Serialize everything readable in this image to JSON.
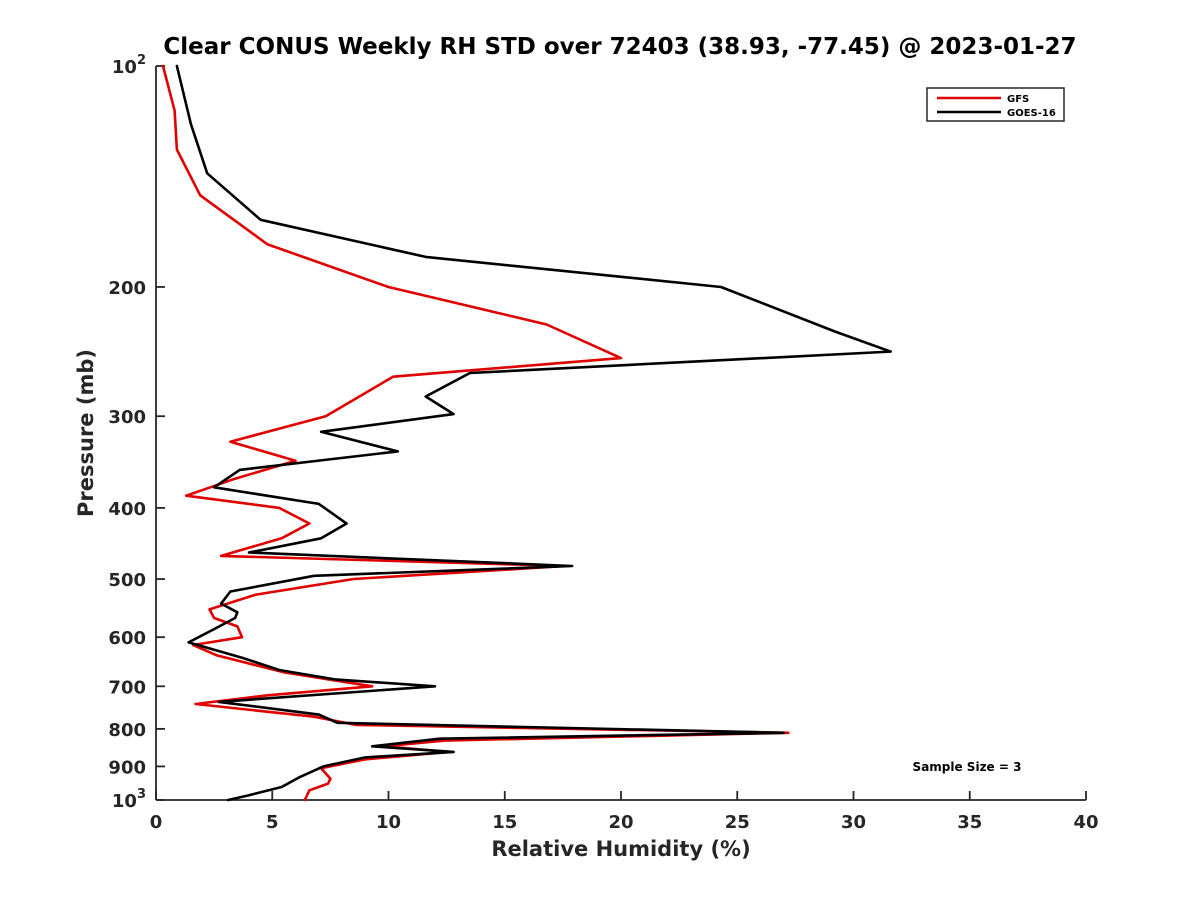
{
  "chart_data": {
    "type": "line",
    "title": "Clear CONUS Weekly RH STD over 72403 (38.93, -77.45) @ 2023-01-27",
    "xlabel": "Relative Humidity (%)",
    "ylabel": "Pressure (mb)",
    "xlim": [
      0,
      40
    ],
    "ylim": [
      100,
      1000
    ],
    "y_scale": "log",
    "y_reversed": true,
    "grid": false,
    "legend_position": "top-right",
    "x_ticks": [
      "0",
      "5",
      "10",
      "15",
      "20",
      "25",
      "30",
      "35",
      "40"
    ],
    "y_ticks": [
      {
        "value": 100,
        "base": "10",
        "exp": "2"
      },
      {
        "value": 200,
        "label": "200"
      },
      {
        "value": 300,
        "label": "300"
      },
      {
        "value": 400,
        "label": "400"
      },
      {
        "value": 500,
        "label": "500"
      },
      {
        "value": 600,
        "label": "600"
      },
      {
        "value": 700,
        "label": "700"
      },
      {
        "value": 800,
        "label": "800"
      },
      {
        "value": 900,
        "label": "900"
      },
      {
        "value": 1000,
        "base": "10",
        "exp": "3"
      }
    ],
    "annotation": "Sample Size = 3",
    "series": [
      {
        "name": "GFS",
        "color": "#e00000",
        "points": [
          [
            0.3,
            100
          ],
          [
            0.8,
            115
          ],
          [
            0.9,
            130
          ],
          [
            1.9,
            150
          ],
          [
            4.8,
            175
          ],
          [
            10.0,
            200
          ],
          [
            16.8,
            225
          ],
          [
            20.0,
            250
          ],
          [
            10.2,
            265
          ],
          [
            7.3,
            300
          ],
          [
            3.2,
            325
          ],
          [
            6.0,
            345
          ],
          [
            3.4,
            365
          ],
          [
            1.3,
            385
          ],
          [
            5.3,
            400
          ],
          [
            6.6,
            420
          ],
          [
            5.4,
            440
          ],
          [
            2.8,
            465
          ],
          [
            17.6,
            480
          ],
          [
            8.5,
            500
          ],
          [
            4.3,
            525
          ],
          [
            2.3,
            550
          ],
          [
            2.5,
            565
          ],
          [
            3.5,
            580
          ],
          [
            3.7,
            600
          ],
          [
            1.6,
            615
          ],
          [
            2.6,
            635
          ],
          [
            5.5,
            670
          ],
          [
            9.3,
            700
          ],
          [
            4.8,
            720
          ],
          [
            1.7,
            740
          ],
          [
            6.8,
            770
          ],
          [
            8.6,
            790
          ],
          [
            27.2,
            810
          ],
          [
            12.4,
            830
          ],
          [
            9.8,
            845
          ],
          [
            12.6,
            860
          ],
          [
            9.0,
            880
          ],
          [
            7.1,
            905
          ],
          [
            7.5,
            935
          ],
          [
            7.4,
            950
          ],
          [
            6.6,
            970
          ],
          [
            6.4,
            1000
          ]
        ]
      },
      {
        "name": "GOES-16",
        "color": "#000000",
        "points": [
          [
            0.9,
            100
          ],
          [
            1.5,
            120
          ],
          [
            2.2,
            140
          ],
          [
            4.5,
            162
          ],
          [
            11.6,
            182
          ],
          [
            24.3,
            200
          ],
          [
            29.2,
            230
          ],
          [
            31.6,
            245
          ],
          [
            13.5,
            262
          ],
          [
            11.6,
            282
          ],
          [
            12.8,
            298
          ],
          [
            7.1,
            315
          ],
          [
            10.4,
            335
          ],
          [
            3.6,
            355
          ],
          [
            2.5,
            375
          ],
          [
            7.0,
            395
          ],
          [
            8.2,
            420
          ],
          [
            7.1,
            440
          ],
          [
            4.0,
            460
          ],
          [
            17.9,
            480
          ],
          [
            6.8,
            495
          ],
          [
            3.2,
            520
          ],
          [
            2.8,
            540
          ],
          [
            3.5,
            555
          ],
          [
            3.4,
            565
          ],
          [
            2.5,
            585
          ],
          [
            1.4,
            610
          ],
          [
            3.7,
            640
          ],
          [
            5.3,
            665
          ],
          [
            7.7,
            685
          ],
          [
            12.0,
            700
          ],
          [
            2.7,
            735
          ],
          [
            7.0,
            765
          ],
          [
            7.8,
            785
          ],
          [
            27.0,
            810
          ],
          [
            12.2,
            825
          ],
          [
            9.3,
            845
          ],
          [
            12.8,
            860
          ],
          [
            9.0,
            875
          ],
          [
            7.2,
            900
          ],
          [
            6.2,
            930
          ],
          [
            5.4,
            960
          ],
          [
            4.0,
            985
          ],
          [
            3.1,
            1000
          ]
        ]
      }
    ]
  }
}
